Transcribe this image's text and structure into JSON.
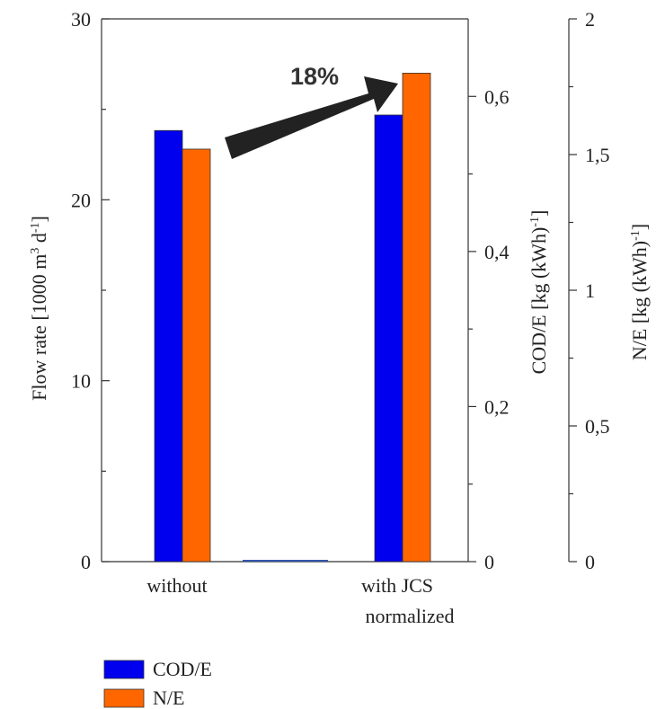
{
  "chart_data": {
    "type": "bar",
    "categories": [
      {
        "line1": "without",
        "line2": ""
      },
      {
        "line1": "with JCS",
        "line2": "normalized"
      }
    ],
    "series": [
      {
        "name": "COD/E",
        "color": "#0000ee",
        "axis": "COD/E",
        "values": [
          0.556,
          0.576
        ]
      },
      {
        "name": "N/E",
        "color": "#ff6600",
        "axis": "N/E",
        "values": [
          1.52,
          1.8
        ]
      }
    ],
    "baseline_marker": {
      "category_between": true,
      "value": 0
    },
    "axes": {
      "left": {
        "label_main": "Flow rate [1000 m",
        "label_sup1": "3",
        "label_mid": " d",
        "label_sup2": "-1",
        "label_end": "]",
        "ylim": [
          0,
          30
        ],
        "ticks": [
          "0",
          "10",
          "20",
          "30"
        ]
      },
      "right1": {
        "label_main": "COD/E [kg (kWh)",
        "label_sup": "-1",
        "label_end": "]",
        "ylim": [
          0,
          0.7
        ],
        "ticks": [
          "0",
          "0,2",
          "0,4",
          "0,6"
        ]
      },
      "right2": {
        "label_main": "N/E [kg (kWh)",
        "label_sup": "-1",
        "label_end": "]",
        "ylim": [
          0,
          2
        ],
        "ticks": [
          "0",
          "0,5",
          "1",
          "1,5",
          "2"
        ]
      }
    },
    "annotation": {
      "text": "18%",
      "arrow_color": "#222222"
    },
    "legend": {
      "placement": "bottom-left"
    },
    "grid": false
  }
}
